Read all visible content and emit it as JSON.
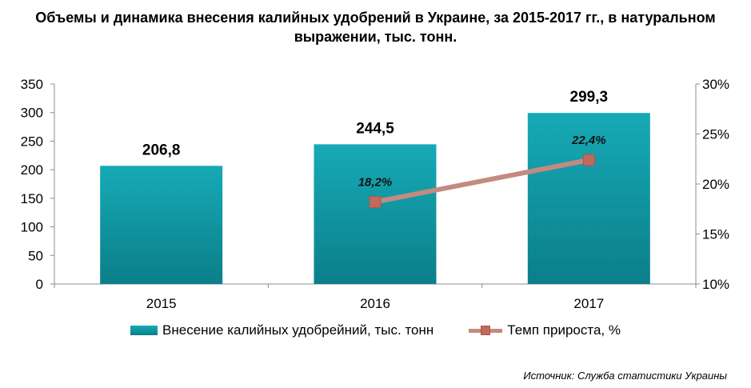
{
  "title_lines": [
    "Объемы и динамика внесения калийных удобрений в Украине, за 2015-2017 гг., в натуральном",
    "выражении, тыс. тонн."
  ],
  "legend": {
    "bar_label": "Внесение калийных удобрейний, тыс. тонн",
    "line_label": "Темп прироста, %"
  },
  "source": "Источник: Служба статистики Украины",
  "colors": {
    "bar_top": "#16aab6",
    "bar_bottom": "#0b7f8a",
    "line": "#c48a80",
    "marker": "#c06a5e"
  },
  "chart_data": {
    "type": "bar",
    "categories": [
      "2015",
      "2016",
      "2017"
    ],
    "series": [
      {
        "name": "Внесение калийных удобрейний, тыс. тонн",
        "type": "bar",
        "axis": "left",
        "values": [
          206.8,
          244.5,
          299.3
        ],
        "labels": [
          "206,8",
          "244,5",
          "299,3"
        ]
      },
      {
        "name": "Темп прироста, %",
        "type": "line",
        "axis": "right",
        "values": [
          null,
          18.2,
          22.4
        ],
        "labels": [
          "",
          "18,2%",
          "22,4%"
        ]
      }
    ],
    "y_left": {
      "ylim": [
        0,
        350
      ],
      "ticks": [
        0,
        50,
        100,
        150,
        200,
        250,
        300,
        350
      ],
      "tick_labels": [
        "0",
        "50",
        "100",
        "150",
        "200",
        "250",
        "300",
        "350"
      ]
    },
    "y_right": {
      "ylim": [
        10,
        30
      ],
      "ticks": [
        10,
        15,
        20,
        25,
        30
      ],
      "tick_labels": [
        "10%",
        "15%",
        "20%",
        "25%",
        "30%"
      ]
    },
    "grid": false,
    "legend_position": "bottom"
  }
}
